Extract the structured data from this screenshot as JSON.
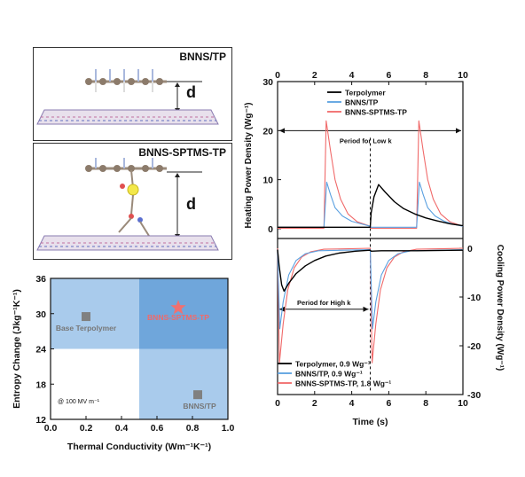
{
  "panel_a": {
    "top_label": "BNNS/TP",
    "bottom_label": "BNNS-SPTMS-TP",
    "distance_symbol": "d"
  },
  "chart_data": [
    {
      "id": "entropy_map",
      "type": "scatter",
      "xlabel": "Thermal Conductivity (Wm⁻¹K⁻¹)",
      "ylabel": "Entropy Change (Jkg⁻¹K⁻¹)",
      "xlim": [
        0.0,
        1.0
      ],
      "ylim": [
        12,
        36
      ],
      "xticks": [
        "0.0",
        "0.2",
        "0.4",
        "0.6",
        "0.8",
        "1.0"
      ],
      "yticks": [
        "12",
        "18",
        "24",
        "30",
        "36"
      ],
      "regions": [
        {
          "x": [
            0.0,
            0.5
          ],
          "y": [
            24,
            36
          ],
          "color": "#a9cbec"
        },
        {
          "x": [
            0.5,
            1.0
          ],
          "y": [
            24,
            36
          ],
          "color": "#6fa6db"
        },
        {
          "x": [
            0.5,
            1.0
          ],
          "y": [
            12,
            24
          ],
          "color": "#a9cbec"
        }
      ],
      "points": [
        {
          "label": "Base Terpolymer",
          "x": 0.2,
          "y": 29.5,
          "marker": "square",
          "color": "#808080",
          "label_color": "#777777"
        },
        {
          "label": "BNNS-SPTMS-TP",
          "x": 0.72,
          "y": 31,
          "marker": "star",
          "color": "#f07070",
          "label_color": "#f06a6a"
        },
        {
          "label": "BNNS/TP",
          "x": 0.83,
          "y": 16.2,
          "marker": "square",
          "color": "#808080",
          "label_color": "#777777"
        }
      ],
      "annotation": "@ 100 MV m⁻¹"
    },
    {
      "id": "power_density",
      "type": "line",
      "xlabel": "Time (s)",
      "xlim": [
        0,
        10
      ],
      "xticks": [
        "0",
        "2",
        "4",
        "6",
        "8",
        "10"
      ],
      "top_panel": {
        "ylabel": "Heating Power Density (Wg⁻¹)",
        "ylim": [
          -2,
          30
        ],
        "yticks": [
          "0",
          "10",
          "20",
          "30"
        ],
        "legend": [
          "Terpolymer",
          "BNNS/TP",
          "BNNS-SPTMS-TP"
        ],
        "annotation": "Period for Low k",
        "series": [
          {
            "name": "Terpolymer",
            "color": "#000000",
            "points": [
              [
                0,
                0.3
              ],
              [
                5.0,
                0.3
              ],
              [
                5.05,
                3.2
              ],
              [
                5.2,
                6.5
              ],
              [
                5.45,
                9.0
              ],
              [
                5.8,
                7.5
              ],
              [
                6.3,
                5.5
              ],
              [
                6.8,
                4.1
              ],
              [
                7.4,
                3.0
              ],
              [
                8.0,
                2.2
              ],
              [
                8.6,
                1.6
              ],
              [
                9.3,
                1.0
              ],
              [
                10,
                0.6
              ]
            ]
          },
          {
            "name": "BNNS/TP",
            "color": "#5aa0e0",
            "points": [
              [
                0,
                0.3
              ],
              [
                2.5,
                0.3
              ],
              [
                2.65,
                9.5
              ],
              [
                2.85,
                7.0
              ],
              [
                3.1,
                4.3
              ],
              [
                3.5,
                2.6
              ],
              [
                4.0,
                1.5
              ],
              [
                4.6,
                0.9
              ],
              [
                5.0,
                0.5
              ],
              [
                5.01,
                0.3
              ],
              [
                7.5,
                0.3
              ],
              [
                7.65,
                9.5
              ],
              [
                7.85,
                7.0
              ],
              [
                8.1,
                4.3
              ],
              [
                8.5,
                2.6
              ],
              [
                9.0,
                1.5
              ],
              [
                9.5,
                0.9
              ],
              [
                10,
                0.5
              ]
            ]
          },
          {
            "name": "BNNS-SPTMS-TP",
            "color": "#f06a6a",
            "points": [
              [
                0,
                0.1
              ],
              [
                2.5,
                0.1
              ],
              [
                2.62,
                22.0
              ],
              [
                2.85,
                16.0
              ],
              [
                3.1,
                10.0
              ],
              [
                3.4,
                6.0
              ],
              [
                3.8,
                3.0
              ],
              [
                4.3,
                1.4
              ],
              [
                5.0,
                0.5
              ],
              [
                5.01,
                0.1
              ],
              [
                7.5,
                0.1
              ],
              [
                7.62,
                22.0
              ],
              [
                7.85,
                16.0
              ],
              [
                8.1,
                10.0
              ],
              [
                8.4,
                6.0
              ],
              [
                8.8,
                3.0
              ],
              [
                9.3,
                1.4
              ],
              [
                10,
                0.5
              ]
            ]
          }
        ]
      },
      "bottom_panel": {
        "ylabel": "Cooling Power Density (Wg⁻¹)",
        "ylim": [
          -30,
          2
        ],
        "yticks": [
          "0",
          "-10",
          "-20",
          "-30"
        ],
        "legend": [
          "Terpolymer, 0.9 Wg⁻¹",
          "BNNS/TP, 0.9 Wg⁻¹",
          "BNNS-SPTMS-TP, 1.8 Wg⁻¹"
        ],
        "annotation": "Period for High k",
        "series": [
          {
            "name": "Terpolymer, 0.9 Wg⁻¹",
            "color": "#000000",
            "points": [
              [
                0,
                -0.3
              ],
              [
                0.08,
                -3.5
              ],
              [
                0.22,
                -7.5
              ],
              [
                0.35,
                -8.8
              ],
              [
                0.6,
                -7.2
              ],
              [
                1.0,
                -5.2
              ],
              [
                1.5,
                -3.6
              ],
              [
                2.0,
                -2.5
              ],
              [
                2.6,
                -1.6
              ],
              [
                3.3,
                -1.0
              ],
              [
                4.2,
                -0.6
              ],
              [
                5.0,
                -0.4
              ],
              [
                5.05,
                -0.6
              ],
              [
                5.6,
                -0.5
              ],
              [
                7.5,
                -0.5
              ],
              [
                10,
                -0.4
              ]
            ]
          },
          {
            "name": "BNNS/TP, 0.9 Wg⁻¹",
            "color": "#5aa0e0",
            "points": [
              [
                0,
                -0.3
              ],
              [
                0.12,
                -16.5
              ],
              [
                0.3,
                -11.0
              ],
              [
                0.6,
                -5.5
              ],
              [
                1.0,
                -2.5
              ],
              [
                1.5,
                -1.1
              ],
              [
                2.2,
                -0.5
              ],
              [
                5.0,
                -0.3
              ],
              [
                5.12,
                -16.5
              ],
              [
                5.3,
                -11.0
              ],
              [
                5.6,
                -5.5
              ],
              [
                6.0,
                -2.5
              ],
              [
                6.5,
                -1.1
              ],
              [
                7.2,
                -0.5
              ],
              [
                10,
                -0.3
              ]
            ]
          },
          {
            "name": "BNNS-SPTMS-TP, 1.8 Wg⁻¹",
            "color": "#f06a6a",
            "points": [
              [
                0,
                0
              ],
              [
                0.1,
                -23.5
              ],
              [
                0.3,
                -15.5
              ],
              [
                0.55,
                -8.5
              ],
              [
                0.9,
                -4.0
              ],
              [
                1.3,
                -1.8
              ],
              [
                1.8,
                -0.7
              ],
              [
                2.5,
                -0.2
              ],
              [
                5.0,
                0
              ],
              [
                5.1,
                -23.5
              ],
              [
                5.3,
                -15.5
              ],
              [
                5.55,
                -8.5
              ],
              [
                5.9,
                -4.0
              ],
              [
                6.3,
                -1.8
              ],
              [
                6.8,
                -0.7
              ],
              [
                7.5,
                -0.2
              ],
              [
                10,
                0
              ]
            ]
          }
        ]
      }
    }
  ]
}
